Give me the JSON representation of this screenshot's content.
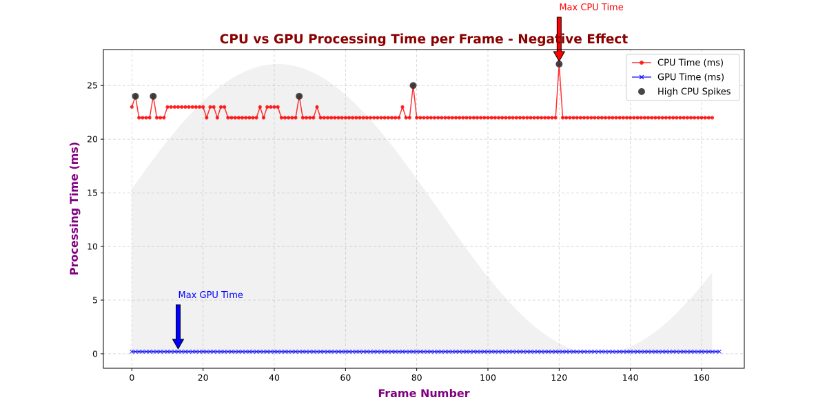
{
  "chart_data": {
    "type": "line",
    "title": "CPU vs GPU Processing Time per Frame - Negative Effect",
    "xlabel": "Frame Number",
    "ylabel": "Processing Time (ms)",
    "xlim": [
      -8,
      172
    ],
    "ylim": [
      -1.35,
      28.35
    ],
    "xticks": [
      0,
      20,
      40,
      60,
      80,
      100,
      120,
      140,
      160
    ],
    "yticks": [
      0,
      5,
      10,
      15,
      20,
      25
    ],
    "grid": true,
    "legend_position": "top-right",
    "series": [
      {
        "name": "CPU Time (ms)",
        "marker": "circle",
        "color": "#ff0000",
        "x_start": 0,
        "values": [
          23,
          24,
          22,
          22,
          22,
          22,
          24,
          22,
          22,
          22,
          23,
          23,
          23,
          23,
          23,
          23,
          23,
          23,
          23,
          23,
          23,
          22,
          23,
          23,
          22,
          23,
          23,
          22,
          22,
          22,
          22,
          22,
          22,
          22,
          22,
          22,
          23,
          22,
          23,
          23,
          23,
          23,
          22,
          22,
          22,
          22,
          22,
          24,
          22,
          22,
          22,
          22,
          23,
          22,
          22,
          22,
          22,
          22,
          22,
          22,
          22,
          22,
          22,
          22,
          22,
          22,
          22,
          22,
          22,
          22,
          22,
          22,
          22,
          22,
          22,
          22,
          23,
          22,
          22,
          25,
          22,
          22,
          22,
          22,
          22,
          22,
          22,
          22,
          22,
          22,
          22,
          22,
          22,
          22,
          22,
          22,
          22,
          22,
          22,
          22,
          22,
          22,
          22,
          22,
          22,
          22,
          22,
          22,
          22,
          22,
          22,
          22,
          22,
          22,
          22,
          22,
          22,
          22,
          22,
          22,
          27,
          22,
          22,
          22,
          22,
          22,
          22,
          22,
          22,
          22,
          22,
          22,
          22,
          22,
          22,
          22,
          22,
          22,
          22,
          22,
          22,
          22,
          22,
          22,
          22,
          22,
          22,
          22,
          22,
          22,
          22,
          22,
          22,
          22,
          22,
          22,
          22,
          22,
          22,
          22,
          22,
          22,
          22,
          22
        ]
      },
      {
        "name": "GPU Time (ms)",
        "marker": "x",
        "color": "#0000ff",
        "x_start": 0,
        "values": [
          0.2,
          0.2,
          0.2,
          0.2,
          0.2,
          0.2,
          0.2,
          0.2,
          0.2,
          0.2,
          0.2,
          0.2,
          0.2,
          0.2,
          0.2,
          0.2,
          0.2,
          0.2,
          0.2,
          0.2,
          0.2,
          0.2,
          0.2,
          0.2,
          0.2,
          0.2,
          0.2,
          0.2,
          0.2,
          0.2,
          0.2,
          0.2,
          0.2,
          0.2,
          0.2,
          0.2,
          0.2,
          0.2,
          0.2,
          0.2,
          0.2,
          0.2,
          0.2,
          0.2,
          0.2,
          0.2,
          0.2,
          0.2,
          0.2,
          0.2,
          0.2,
          0.2,
          0.2,
          0.2,
          0.2,
          0.2,
          0.2,
          0.2,
          0.2,
          0.2,
          0.2,
          0.2,
          0.2,
          0.2,
          0.2,
          0.2,
          0.2,
          0.2,
          0.2,
          0.2,
          0.2,
          0.2,
          0.2,
          0.2,
          0.2,
          0.2,
          0.2,
          0.2,
          0.2,
          0.2,
          0.2,
          0.2,
          0.2,
          0.2,
          0.2,
          0.2,
          0.2,
          0.2,
          0.2,
          0.2,
          0.2,
          0.2,
          0.2,
          0.2,
          0.2,
          0.2,
          0.2,
          0.2,
          0.2,
          0.2,
          0.2,
          0.2,
          0.2,
          0.2,
          0.2,
          0.2,
          0.2,
          0.2,
          0.2,
          0.2,
          0.2,
          0.2,
          0.2,
          0.2,
          0.2,
          0.2,
          0.2,
          0.2,
          0.2,
          0.2,
          0.2,
          0.2,
          0.2,
          0.2,
          0.2,
          0.2,
          0.2,
          0.2,
          0.2,
          0.2,
          0.2,
          0.2,
          0.2,
          0.2,
          0.2,
          0.2,
          0.2,
          0.2,
          0.2,
          0.2,
          0.2,
          0.2,
          0.2,
          0.2,
          0.2,
          0.2,
          0.2,
          0.2,
          0.2,
          0.2,
          0.2,
          0.2,
          0.2,
          0.2,
          0.2,
          0.2,
          0.2,
          0.2,
          0.2,
          0.2,
          0.2,
          0.2,
          0.2,
          0.2,
          0.2,
          0.2
        ]
      },
      {
        "name": "High CPU Spikes",
        "marker": "circle-large",
        "color": "#333333",
        "points": [
          [
            1,
            24
          ],
          [
            6,
            24
          ],
          [
            47,
            24
          ],
          [
            79,
            25
          ],
          [
            120,
            27
          ]
        ]
      }
    ],
    "background_band": {
      "color": "#cccccc",
      "amplitude": 13.5,
      "offset": 13.5,
      "period_frames": 180,
      "phase_frames": -4
    },
    "annotations": [
      {
        "text": "Max CPU Time",
        "x": 120,
        "y": 27,
        "color": "#ff0000",
        "arrow_color": "#ff0000"
      },
      {
        "text": "Max GPU Time",
        "x": 13,
        "y": 0.2,
        "color": "#0000ff",
        "arrow_color": "#0000ff"
      }
    ]
  }
}
